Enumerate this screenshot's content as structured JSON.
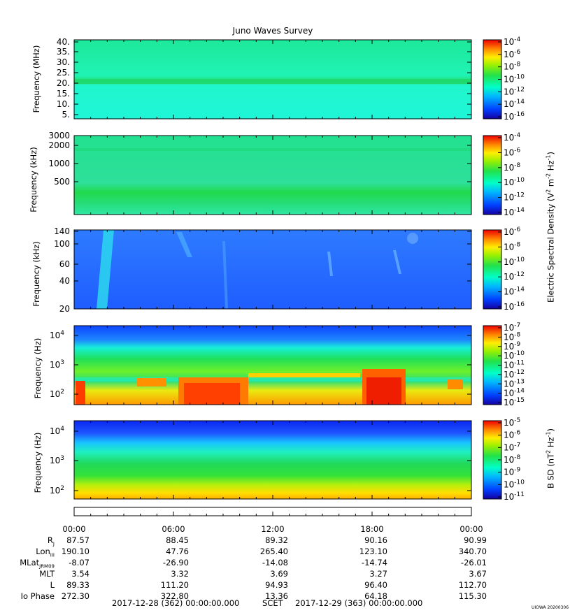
{
  "title": "Juno Waves Survey",
  "credit": "UIOWA 20200306",
  "colors": {
    "field_low": "#1e66ff",
    "field_mid": "#19f3c4",
    "field_green": "#1fe05a",
    "field_yellow": "#ffe600",
    "field_orange": "#ff8000",
    "field_red": "#e80000"
  },
  "colorbar_labels": {
    "electric": "Electric Spectral Density (V",
    "electric_tail": "m",
    "electric_hz": "Hz",
    "magnetic": "B SD (nT",
    "magnetic_hz": "Hz"
  },
  "chart_data": [
    {
      "type": "heatmap",
      "name": "",
      "ylabel": "Frequency (MHz)",
      "yticks": [
        "40.",
        "35.",
        "30.",
        "25.",
        "20.",
        "15.",
        "10.",
        "5."
      ],
      "ylim": [
        3.5,
        40.5
      ],
      "colorbar": [
        "10",
        "10",
        "10",
        "10",
        "10",
        "10",
        "10"
      ],
      "colorbar_exp": [
        "-4",
        "-6",
        "-8",
        "-10",
        "-12",
        "-14",
        "-16"
      ],
      "colorbar_range": [
        -17,
        -4
      ]
    },
    {
      "type": "heatmap",
      "ylabel": "Frequency (kHz)",
      "yticks": [
        "3000",
        "2000",
        "1000",
        "500"
      ],
      "colorbar": [
        "10",
        "10",
        "10",
        "10",
        "10",
        "10"
      ],
      "colorbar_exp": [
        "-4",
        "-6",
        "-8",
        "-10",
        "-12",
        "-14"
      ],
      "colorbar_range": [
        -15,
        -3
      ]
    },
    {
      "type": "heatmap",
      "ylabel": "Frequency (kHz)",
      "yticks": [
        "140",
        "100",
        "60",
        "40",
        "20"
      ],
      "colorbar": [
        "10",
        "10",
        "10",
        "10",
        "10",
        "10"
      ],
      "colorbar_exp": [
        "-6",
        "-8",
        "-10",
        "-12",
        "-14",
        "-16"
      ],
      "colorbar_range": [
        -16,
        -6
      ]
    },
    {
      "type": "heatmap",
      "ylabel": "Frequency (Hz)",
      "yticks": [
        "10",
        "10",
        "10"
      ],
      "yticks_exp": [
        "4",
        "3",
        "2"
      ],
      "colorbar": [
        "10",
        "10",
        "10",
        "10",
        "10",
        "10",
        "10",
        "10",
        "10"
      ],
      "colorbar_exp": [
        "-7",
        "-8",
        "-9",
        "-10",
        "-11",
        "-12",
        "-13",
        "-14",
        "-15"
      ],
      "colorbar_range": [
        -15,
        -7
      ]
    },
    {
      "type": "heatmap",
      "ylabel": "Frequency (Hz)",
      "yticks": [
        "10",
        "10",
        "10"
      ],
      "yticks_exp": [
        "4",
        "3",
        "2"
      ],
      "colorbar": [
        "10",
        "10",
        "10",
        "10",
        "10",
        "10",
        "10"
      ],
      "colorbar_exp": [
        "-5",
        "-6",
        "-7",
        "-8",
        "-9",
        "-10",
        "-11"
      ],
      "colorbar_range": [
        -11,
        -4.5
      ]
    }
  ],
  "ephemeris": {
    "times": [
      "00:00",
      "06:00",
      "12:00",
      "18:00",
      "00:00"
    ],
    "rows": [
      {
        "label": "R",
        "sub": "J",
        "values": [
          "87.57",
          "88.45",
          "89.32",
          "90.16",
          "90.99"
        ]
      },
      {
        "label": "Lon",
        "sub": "III",
        "values": [
          "190.10",
          "47.76",
          "265.40",
          "123.10",
          "340.70"
        ]
      },
      {
        "label": "MLat",
        "sub": "JRM09",
        "values": [
          "-8.07",
          "-26.90",
          "-14.08",
          "-14.74",
          "-26.01"
        ]
      },
      {
        "label": "MLT",
        "sub": "",
        "values": [
          "3.54",
          "3.32",
          "3.69",
          "3.27",
          "3.67"
        ]
      },
      {
        "label": "L",
        "sub": "",
        "values": [
          "89.33",
          "111.20",
          "94.93",
          "96.40",
          "112.70"
        ]
      },
      {
        "label": "Io Phase",
        "sub": "",
        "values": [
          "272.30",
          "322.80",
          "13.36",
          "64.18",
          "115.30"
        ]
      }
    ],
    "start": "2017-12-28 (362) 00:00:00.000",
    "scet": "SCET",
    "end": "2017-12-29 (363) 00:00:00.000"
  }
}
